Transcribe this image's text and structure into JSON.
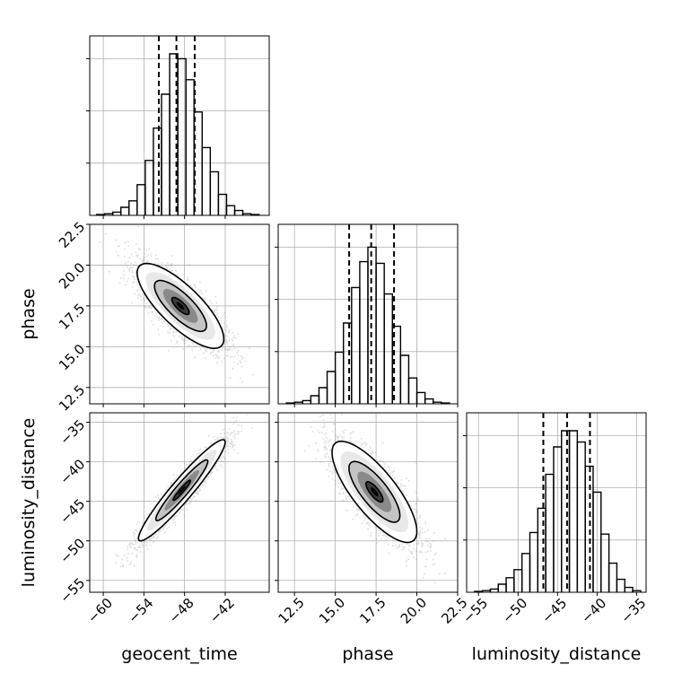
{
  "chart_data": {
    "type": "corner",
    "parameters": [
      "geocent_time",
      "phase",
      "luminosity_distance"
    ],
    "axes": {
      "geocent_time": {
        "label": "geocent_time",
        "range": [
          -62,
          -35.5
        ],
        "ticks": [
          -60,
          -54,
          -48,
          -42
        ],
        "tick_labels": [
          "−60",
          "−54",
          "−48",
          "−42"
        ]
      },
      "phase": {
        "label": "phase",
        "range": [
          11.5,
          22.5
        ],
        "ticks": [
          12.5,
          15.0,
          17.5,
          20.0,
          22.5
        ],
        "tick_labels": [
          "12.5",
          "15.0",
          "17.5",
          "20.0",
          "22.5"
        ]
      },
      "luminosity_distance": {
        "label": "luminosity_distance",
        "range": [
          -56.5,
          -33.8
        ],
        "ticks": [
          -55,
          -50,
          -45,
          -40,
          -35
        ],
        "tick_labels": [
          "−55",
          "−50",
          "−45",
          "−40",
          "−35"
        ]
      }
    },
    "histograms": [
      {
        "parameter": "geocent_time",
        "quantiles": [
          -51.8,
          -49.2,
          -46.5
        ],
        "bins": [
          {
            "x0": -61.0,
            "x1": -59.8,
            "h": 0.005
          },
          {
            "x0": -59.8,
            "x1": -58.6,
            "h": 0.01
          },
          {
            "x0": -58.6,
            "x1": -57.4,
            "h": 0.02
          },
          {
            "x0": -57.4,
            "x1": -56.2,
            "h": 0.05
          },
          {
            "x0": -56.2,
            "x1": -55.0,
            "h": 0.09
          },
          {
            "x0": -55.0,
            "x1": -53.8,
            "h": 0.19
          },
          {
            "x0": -53.8,
            "x1": -52.6,
            "h": 0.34
          },
          {
            "x0": -52.6,
            "x1": -51.4,
            "h": 0.54
          },
          {
            "x0": -51.4,
            "x1": -50.2,
            "h": 0.75
          },
          {
            "x0": -50.2,
            "x1": -49.0,
            "h": 1.0
          },
          {
            "x0": -49.0,
            "x1": -47.8,
            "h": 0.97
          },
          {
            "x0": -47.8,
            "x1": -46.6,
            "h": 0.84
          },
          {
            "x0": -46.6,
            "x1": -45.4,
            "h": 0.64
          },
          {
            "x0": -45.4,
            "x1": -44.2,
            "h": 0.42
          },
          {
            "x0": -44.2,
            "x1": -43.0,
            "h": 0.27
          },
          {
            "x0": -43.0,
            "x1": -41.8,
            "h": 0.13
          },
          {
            "x0": -41.8,
            "x1": -40.6,
            "h": 0.06
          },
          {
            "x0": -40.6,
            "x1": -39.4,
            "h": 0.03
          },
          {
            "x0": -39.4,
            "x1": -38.2,
            "h": 0.01
          },
          {
            "x0": -38.2,
            "x1": -37.0,
            "h": 0.005
          }
        ]
      },
      {
        "parameter": "phase",
        "quantiles": [
          15.85,
          17.2,
          18.6
        ],
        "bins": [
          {
            "x0": 12.0,
            "x1": 12.5,
            "h": 0.005
          },
          {
            "x0": 12.5,
            "x1": 13.0,
            "h": 0.01
          },
          {
            "x0": 13.0,
            "x1": 13.5,
            "h": 0.02
          },
          {
            "x0": 13.5,
            "x1": 14.0,
            "h": 0.05
          },
          {
            "x0": 14.0,
            "x1": 14.5,
            "h": 0.1
          },
          {
            "x0": 14.5,
            "x1": 15.0,
            "h": 0.2
          },
          {
            "x0": 15.0,
            "x1": 15.5,
            "h": 0.32
          },
          {
            "x0": 15.5,
            "x1": 16.0,
            "h": 0.5
          },
          {
            "x0": 16.0,
            "x1": 16.5,
            "h": 0.72
          },
          {
            "x0": 16.5,
            "x1": 17.0,
            "h": 0.88
          },
          {
            "x0": 17.0,
            "x1": 17.5,
            "h": 0.97
          },
          {
            "x0": 17.5,
            "x1": 18.0,
            "h": 0.87
          },
          {
            "x0": 18.0,
            "x1": 18.5,
            "h": 0.68
          },
          {
            "x0": 18.5,
            "x1": 19.0,
            "h": 0.48
          },
          {
            "x0": 19.0,
            "x1": 19.5,
            "h": 0.3
          },
          {
            "x0": 19.5,
            "x1": 20.0,
            "h": 0.16
          },
          {
            "x0": 20.0,
            "x1": 20.5,
            "h": 0.07
          },
          {
            "x0": 20.5,
            "x1": 21.0,
            "h": 0.03
          },
          {
            "x0": 21.0,
            "x1": 21.5,
            "h": 0.01
          },
          {
            "x0": 21.5,
            "x1": 22.0,
            "h": 0.005
          }
        ]
      },
      {
        "parameter": "luminosity_distance",
        "quantiles": [
          -46.8,
          -43.8,
          -40.9
        ],
        "bins": [
          {
            "x0": -55.5,
            "x1": -54.5,
            "h": 0.005
          },
          {
            "x0": -54.5,
            "x1": -53.5,
            "h": 0.01
          },
          {
            "x0": -53.5,
            "x1": -52.5,
            "h": 0.02
          },
          {
            "x0": -52.5,
            "x1": -51.5,
            "h": 0.05
          },
          {
            "x0": -51.5,
            "x1": -50.5,
            "h": 0.09
          },
          {
            "x0": -50.5,
            "x1": -49.5,
            "h": 0.14
          },
          {
            "x0": -49.5,
            "x1": -48.5,
            "h": 0.24
          },
          {
            "x0": -48.5,
            "x1": -47.5,
            "h": 0.37
          },
          {
            "x0": -47.5,
            "x1": -46.5,
            "h": 0.52
          },
          {
            "x0": -46.5,
            "x1": -45.5,
            "h": 0.73
          },
          {
            "x0": -45.5,
            "x1": -44.5,
            "h": 0.9
          },
          {
            "x0": -44.5,
            "x1": -43.5,
            "h": 1.0
          },
          {
            "x0": -43.5,
            "x1": -42.5,
            "h": 1.0
          },
          {
            "x0": -42.5,
            "x1": -41.5,
            "h": 0.93
          },
          {
            "x0": -41.5,
            "x1": -40.5,
            "h": 0.78
          },
          {
            "x0": -40.5,
            "x1": -39.5,
            "h": 0.62
          },
          {
            "x0": -39.5,
            "x1": -38.5,
            "h": 0.36
          },
          {
            "x0": -38.5,
            "x1": -37.5,
            "h": 0.18
          },
          {
            "x0": -37.5,
            "x1": -36.5,
            "h": 0.08
          },
          {
            "x0": -36.5,
            "x1": -35.5,
            "h": 0.03
          },
          {
            "x0": -35.5,
            "x1": -34.5,
            "h": 0.01
          }
        ]
      }
    ],
    "joint": [
      {
        "x": "geocent_time",
        "y": "phase",
        "mean": [
          -48.6,
          17.5
        ],
        "sd": [
          3.2,
          1.3
        ],
        "rho": -0.78,
        "contour_levels": [
          0.4,
          1.2,
          2.0
        ]
      },
      {
        "x": "geocent_time",
        "y": "luminosity_distance",
        "mean": [
          -48.4,
          -43.6
        ],
        "sd": [
          3.2,
          3.2
        ],
        "rho": 0.95,
        "contour_levels": [
          0.4,
          1.2,
          2.0
        ]
      },
      {
        "x": "phase",
        "y": "luminosity_distance",
        "mean": [
          17.4,
          -43.8
        ],
        "sd": [
          1.3,
          3.2
        ],
        "rho": -0.78,
        "contour_levels": [
          0.4,
          1.2,
          2.0
        ]
      }
    ],
    "colors": {
      "line": "#000000",
      "points": "#808080",
      "grid": "#b0b0b0"
    },
    "grid": true
  }
}
